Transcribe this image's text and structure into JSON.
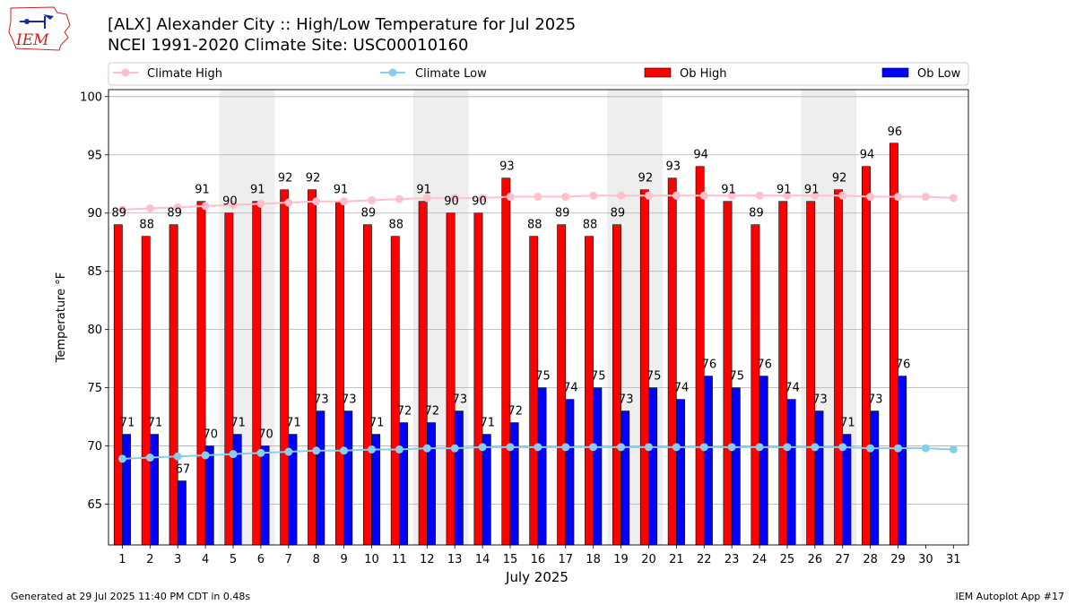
{
  "header": {
    "title_line1": "[ALX] Alexander City :: High/Low Temperature for Jul 2025",
    "title_line2": "NCEI 1991-2020 Climate Site: USC00010160",
    "logo_text": "IEM"
  },
  "footer": {
    "left": "Generated at 29 Jul 2025 11:40 PM CDT in 0.48s",
    "right": "IEM Autoplot App #17"
  },
  "colors": {
    "ob_high": "#ff0000",
    "ob_low": "#0000ff",
    "climate_high": "#ffc0cb",
    "climate_low": "#87ceeb",
    "weekend_shade": "#eeeeee",
    "grid": "#b0b0b0"
  },
  "chart_data": {
    "type": "bar",
    "title": "[ALX] Alexander City :: High/Low Temperature for Jul 2025",
    "subtitle": "NCEI 1991-2020 Climate Site: USC00010160",
    "xlabel": "July 2025",
    "ylabel": "Temperature °F",
    "ylim": [
      61.5,
      100.6
    ],
    "yticks": [
      65,
      70,
      75,
      80,
      85,
      90,
      95,
      100
    ],
    "grid": true,
    "legend_placement": "top, above plot",
    "categories": [
      "1",
      "2",
      "3",
      "4",
      "5",
      "6",
      "7",
      "8",
      "9",
      "10",
      "11",
      "12",
      "13",
      "14",
      "15",
      "16",
      "17",
      "18",
      "19",
      "20",
      "21",
      "22",
      "23",
      "24",
      "25",
      "26",
      "27",
      "28",
      "29",
      "30",
      "31"
    ],
    "shaded_day_pairs": [
      [
        5,
        6
      ],
      [
        12,
        13
      ],
      [
        19,
        20
      ],
      [
        26,
        27
      ]
    ],
    "series": [
      {
        "name": "Climate High",
        "kind": "line",
        "values": [
          90.3,
          90.4,
          90.5,
          90.6,
          90.7,
          90.8,
          90.9,
          91.0,
          91.0,
          91.1,
          91.2,
          91.3,
          91.3,
          91.3,
          91.4,
          91.4,
          91.4,
          91.5,
          91.5,
          91.5,
          91.5,
          91.5,
          91.5,
          91.5,
          91.5,
          91.5,
          91.5,
          91.4,
          91.4,
          91.4,
          91.3
        ]
      },
      {
        "name": "Climate Low",
        "kind": "line",
        "values": [
          68.9,
          69.0,
          69.1,
          69.2,
          69.3,
          69.4,
          69.5,
          69.6,
          69.6,
          69.7,
          69.7,
          69.8,
          69.8,
          69.9,
          69.9,
          69.9,
          69.9,
          69.9,
          69.9,
          69.9,
          69.9,
          69.9,
          69.9,
          69.9,
          69.9,
          69.9,
          69.9,
          69.8,
          69.8,
          69.8,
          69.7
        ]
      },
      {
        "name": "Ob High",
        "kind": "bar",
        "values": [
          89,
          88,
          89,
          91,
          90,
          91,
          92,
          92,
          91,
          89,
          88,
          91,
          90,
          90,
          93,
          88,
          89,
          88,
          89,
          92,
          93,
          94,
          91,
          89,
          91,
          91,
          92,
          94,
          96,
          null,
          null
        ]
      },
      {
        "name": "Ob Low",
        "kind": "bar",
        "values": [
          71,
          71,
          67,
          70,
          71,
          70,
          71,
          73,
          73,
          71,
          72,
          72,
          73,
          71,
          72,
          75,
          74,
          75,
          73,
          75,
          74,
          76,
          75,
          76,
          74,
          73,
          71,
          73,
          76,
          null,
          null
        ]
      }
    ]
  }
}
